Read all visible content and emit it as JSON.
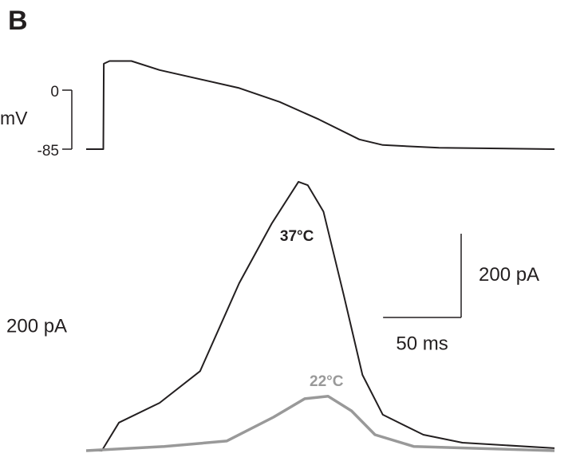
{
  "panel_label": "B",
  "chart_data": [
    {
      "type": "line",
      "ylabel": "mV",
      "ylim": [
        -85,
        50
      ],
      "yticks": [
        0,
        -85
      ],
      "xlim": [
        0,
        300
      ],
      "series": [
        {
          "color": "#231f20",
          "x": [
            0,
            11,
            11.3,
            15,
            29,
            47,
            98,
            124,
            149,
            175,
            190,
            226,
            300
          ],
          "values": [
            -85,
            -85,
            38,
            42,
            42,
            29,
            3,
            -17,
            -42,
            -71,
            -79,
            -83,
            -85
          ]
        }
      ]
    },
    {
      "type": "line",
      "ylim": [
        0,
        700
      ],
      "xlim": [
        0,
        300
      ],
      "annotations": [
        "200 pA"
      ],
      "scalebar": {
        "x_length": 50,
        "x_label": "50 ms",
        "y_length": 200,
        "y_label": "200 pA"
      },
      "series": [
        {
          "name": "37°C",
          "color": "#231f20",
          "x": [
            0,
            10,
            21,
            47,
            73,
            98,
            119,
            136,
            142,
            152,
            165,
            177,
            190,
            216,
            241,
            300
          ],
          "values": [
            0,
            0,
            67,
            114,
            190,
            400,
            543,
            642,
            634,
            571,
            371,
            181,
            86,
            38,
            19,
            6
          ]
        },
        {
          "name": "22°C",
          "color": "#999999",
          "x": [
            0,
            50,
            90,
            120,
            140,
            155,
            170,
            185,
            210,
            300
          ],
          "values": [
            0,
            10,
            23,
            80,
            124,
            130,
            95,
            38,
            10,
            0
          ]
        }
      ]
    }
  ]
}
